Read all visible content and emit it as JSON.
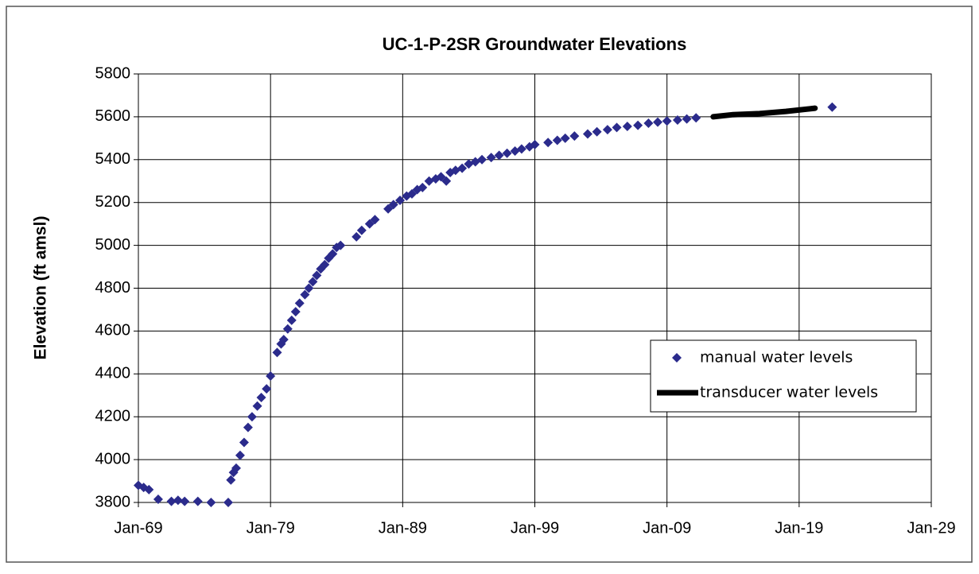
{
  "chart_data": {
    "type": "scatter",
    "title": "UC-1-P-2SR   Groundwater Elevations",
    "y_label": "Elevation (ft amsl)",
    "xlim": [
      1969,
      2029
    ],
    "ylim": [
      3800,
      5800
    ],
    "xticks": [
      {
        "value": 1969,
        "label": "Jan-69"
      },
      {
        "value": 1979,
        "label": "Jan-79"
      },
      {
        "value": 1989,
        "label": "Jan-89"
      },
      {
        "value": 1999,
        "label": "Jan-99"
      },
      {
        "value": 2009,
        "label": "Jan-09"
      },
      {
        "value": 2019,
        "label": "Jan-19"
      },
      {
        "value": 2029,
        "label": "Jan-29"
      }
    ],
    "yticks": [
      3800,
      4000,
      4200,
      4400,
      4600,
      4800,
      5000,
      5200,
      5400,
      5600,
      5800
    ],
    "grid": true,
    "legend": "right",
    "series": [
      {
        "name": "manual water levels",
        "color": "#2b2b8c",
        "marker": "diamond",
        "x": [
          1969.0,
          1969.4,
          1969.8,
          1970.5,
          1971.5,
          1972.0,
          1972.5,
          1973.5,
          1974.5,
          1975.8,
          1976.0,
          1976.2,
          1976.4,
          1976.7,
          1977.0,
          1977.3,
          1977.6,
          1978.0,
          1978.3,
          1978.7,
          1979.0,
          1979.5,
          1979.8,
          1980.0,
          1980.3,
          1980.6,
          1980.9,
          1981.2,
          1981.6,
          1981.9,
          1982.2,
          1982.5,
          1982.8,
          1983.1,
          1983.4,
          1983.7,
          1984.0,
          1984.3,
          1985.5,
          1985.9,
          1986.5,
          1986.9,
          1987.9,
          1988.3,
          1988.8,
          1989.3,
          1989.7,
          1990.1,
          1990.5,
          1991.0,
          1991.5,
          1991.9,
          1992.3,
          1992.6,
          1993.0,
          1993.5,
          1994.0,
          1994.5,
          1995.0,
          1995.7,
          1996.3,
          1996.9,
          1997.5,
          1998.0,
          1998.6,
          1999.0,
          2000.0,
          2000.7,
          2001.3,
          2002.0,
          2003.0,
          2003.7,
          2004.5,
          2005.2,
          2006.0,
          2006.8,
          2007.6,
          2008.3,
          2009.0,
          2009.8,
          2010.5,
          2011.2,
          2021.5
        ],
        "values": [
          3880,
          3870,
          3860,
          3815,
          3805,
          3810,
          3805,
          3805,
          3800,
          3800,
          3905,
          3940,
          3960,
          4020,
          4080,
          4150,
          4200,
          4250,
          4290,
          4330,
          4390,
          4500,
          4540,
          4560,
          4610,
          4650,
          4690,
          4730,
          4770,
          4800,
          4830,
          4860,
          4890,
          4910,
          4940,
          4960,
          4990,
          5000,
          5040,
          5070,
          5100,
          5120,
          5170,
          5190,
          5210,
          5230,
          5240,
          5260,
          5270,
          5300,
          5310,
          5320,
          5300,
          5340,
          5350,
          5360,
          5380,
          5390,
          5400,
          5410,
          5420,
          5430,
          5440,
          5450,
          5460,
          5470,
          5480,
          5490,
          5500,
          5510,
          5520,
          5530,
          5540,
          5550,
          5555,
          5560,
          5570,
          5575,
          5580,
          5585,
          5590,
          5595,
          5645
        ]
      },
      {
        "name": "transducer water levels",
        "color": "#000000",
        "marker": "line",
        "x": [
          2012.5,
          2014.0,
          2016.0,
          2018.0,
          2020.2
        ],
        "values": [
          5600,
          5610,
          5615,
          5625,
          5640
        ]
      }
    ]
  }
}
